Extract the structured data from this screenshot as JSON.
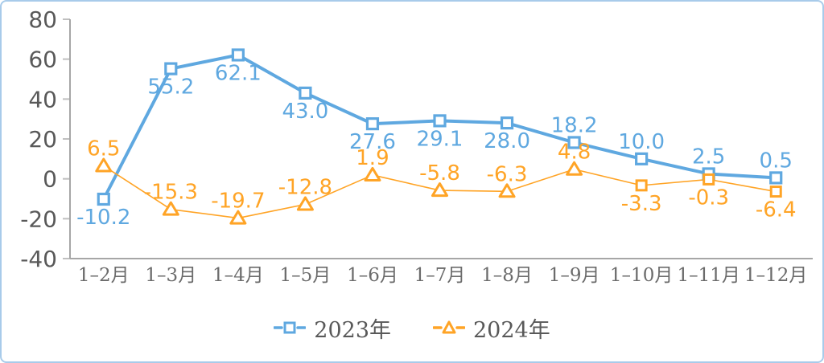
{
  "frame": {
    "background": "#ffffff",
    "border_color": "#a8cbea"
  },
  "chart_data": {
    "type": "line",
    "title": "",
    "xlabel": "",
    "ylabel": "",
    "categories": [
      "1–2月",
      "1–3月",
      "1–4月",
      "1–5月",
      "1–6月",
      "1–7月",
      "1–8月",
      "1–9月",
      "1–10月",
      "1–11月",
      "1–12月"
    ],
    "series": [
      {
        "name": "2023年",
        "color": "#5fa8e0",
        "line_width": 4,
        "marker": "square",
        "marker_shapes": [
          "square",
          "square",
          "square",
          "square",
          "square",
          "square",
          "square",
          "square",
          "square",
          "square",
          "square"
        ],
        "values": [
          -10.2,
          55.2,
          62.1,
          43.0,
          27.6,
          29.1,
          28.0,
          18.2,
          10.0,
          2.5,
          0.5
        ],
        "labels": [
          "-10.2",
          "55.2",
          "62.1",
          "43.0",
          "27.6",
          "29.1",
          "28.0",
          "18.2",
          "10.0",
          "2.5",
          "0.5"
        ],
        "label_positions": [
          "below",
          "below",
          "below",
          "below",
          "below",
          "below",
          "below",
          "above",
          "above",
          "above",
          "above"
        ]
      },
      {
        "name": "2024年",
        "color": "#ffa426",
        "line_width": 1.6,
        "marker": "triangle",
        "marker_shapes": [
          "triangle",
          "triangle",
          "triangle",
          "triangle",
          "triangle",
          "triangle",
          "triangle",
          "triangle",
          "square",
          "square",
          "square"
        ],
        "values": [
          6.5,
          -15.3,
          -19.7,
          -12.8,
          1.9,
          -5.8,
          -6.3,
          4.8,
          -3.3,
          -0.3,
          -6.4
        ],
        "labels": [
          "6.5",
          "-15.3",
          "-19.7",
          "-12.8",
          "1.9",
          "-5.8",
          "-6.3",
          "4.8",
          "-3.3",
          "-0.3",
          "-6.4"
        ],
        "label_positions": [
          "above",
          "above",
          "above",
          "above",
          "above",
          "above",
          "above",
          "above",
          "below",
          "below",
          "below"
        ]
      }
    ],
    "ylim": [
      -40,
      80
    ],
    "ytick_step": 20,
    "y_tick_labels": [
      "-40",
      "-20",
      "0",
      "20",
      "40",
      "60",
      "80"
    ],
    "grid": false,
    "legend_position": "bottom",
    "axis_color": "#a6a6a6",
    "tick_color": "#bfbfbf",
    "y_label_color": "#595959",
    "x_label_color": "#6b6b6b",
    "legend_text_color": "#595959"
  }
}
